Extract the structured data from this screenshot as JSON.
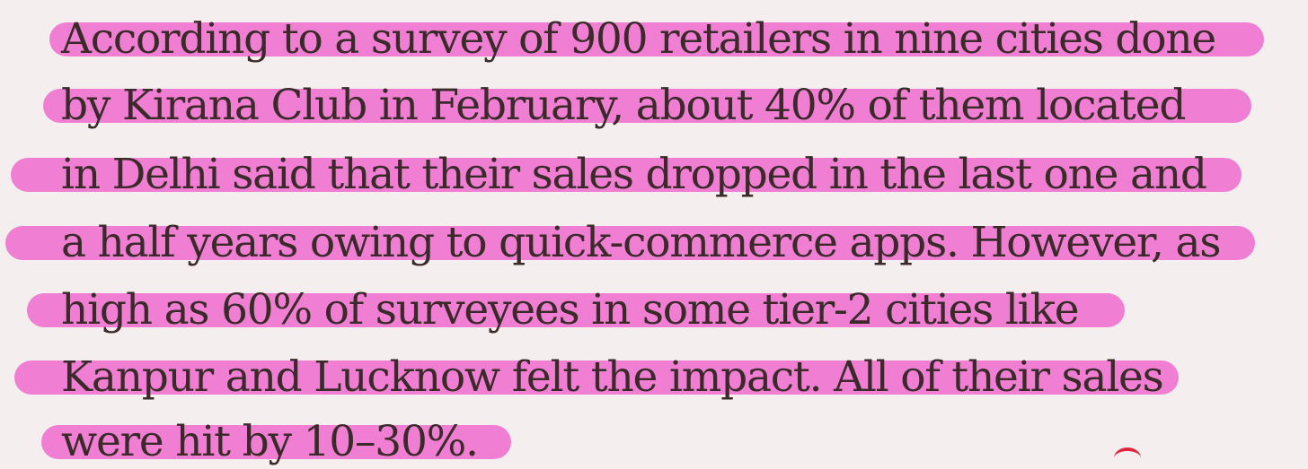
{
  "passage": {
    "lines": [
      "According to a survey of 900 retailers in nine cities done",
      "by Kirana Club in February, about 40% of them located",
      "in Delhi said that their sales dropped in the last one and",
      "a half years owing to quick-commerce apps. However, as",
      "high as 60% of surveyees in some tier-2 cities like",
      "Kanpur and Lucknow felt the impact. All of their sales",
      "were hit by 10–30%."
    ]
  },
  "colors": {
    "background": "#f4eeee",
    "highlight": "#f07fd3",
    "text": "#3a2a2a",
    "mark": "#e0243a"
  }
}
